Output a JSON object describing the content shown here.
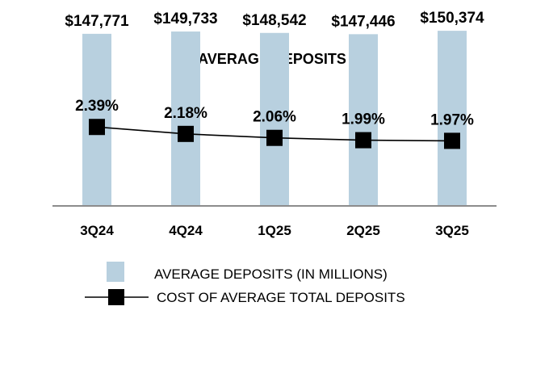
{
  "chart_data": {
    "type": "bar",
    "title": "AVERAGE DEPOSITS",
    "categories": [
      "3Q24",
      "4Q24",
      "1Q25",
      "2Q25",
      "3Q25"
    ],
    "series": [
      {
        "name": "AVERAGE DEPOSITS (IN MILLIONS)",
        "kind": "bar",
        "values": [
          147771,
          149733,
          148542,
          147446,
          150374
        ],
        "labels": [
          "$147,771",
          "$149,733",
          "$148,542",
          "$147,446",
          "$150,374"
        ],
        "color": "#b8d0df"
      },
      {
        "name": "COST OF AVERAGE TOTAL DEPOSITS",
        "kind": "line",
        "values": [
          2.39,
          2.18,
          2.06,
          1.99,
          1.97
        ],
        "labels": [
          "2.39%",
          "2.18%",
          "2.06%",
          "1.99%",
          "1.97%"
        ],
        "color": "#000000"
      }
    ],
    "bar_axis_range": [
      0,
      156000
    ],
    "line_axis_range": [
      0,
      5.5
    ],
    "axis_line_color": "#8c8c8c",
    "grid": false,
    "legend_position": "bottom"
  }
}
